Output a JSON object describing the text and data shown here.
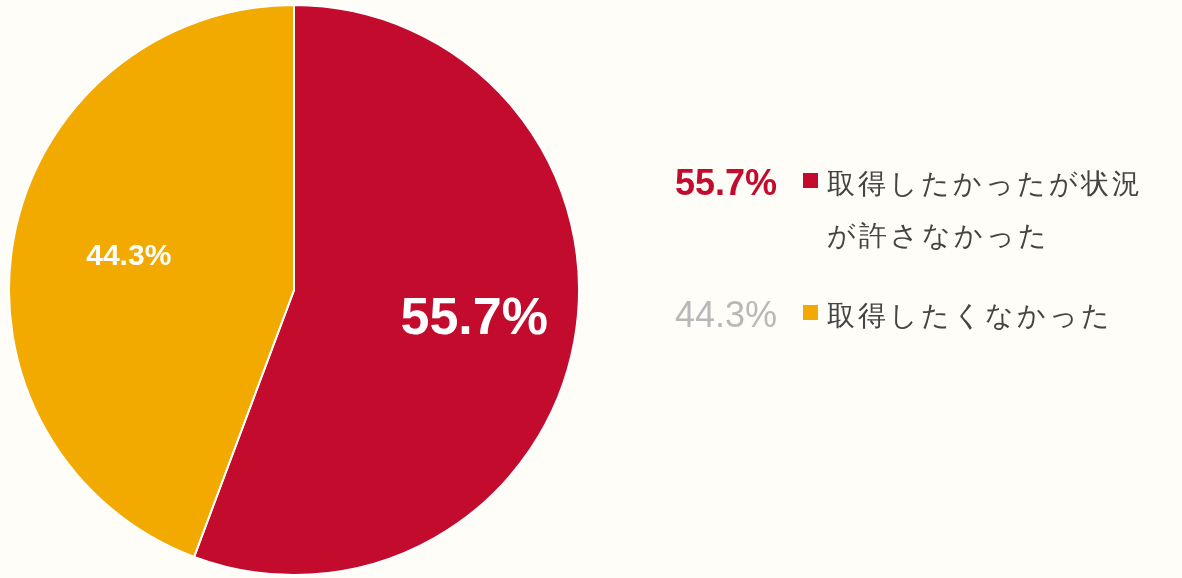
{
  "chart_data": {
    "type": "pie",
    "categories": [
      "取得したかったが状況が許さなかった",
      "取得したくなかった"
    ],
    "values": [
      55.7,
      44.3
    ],
    "value_labels": [
      "55.7%",
      "44.3%"
    ],
    "colors": [
      "#c20b2d",
      "#f2a900"
    ],
    "legend": "right"
  }
}
